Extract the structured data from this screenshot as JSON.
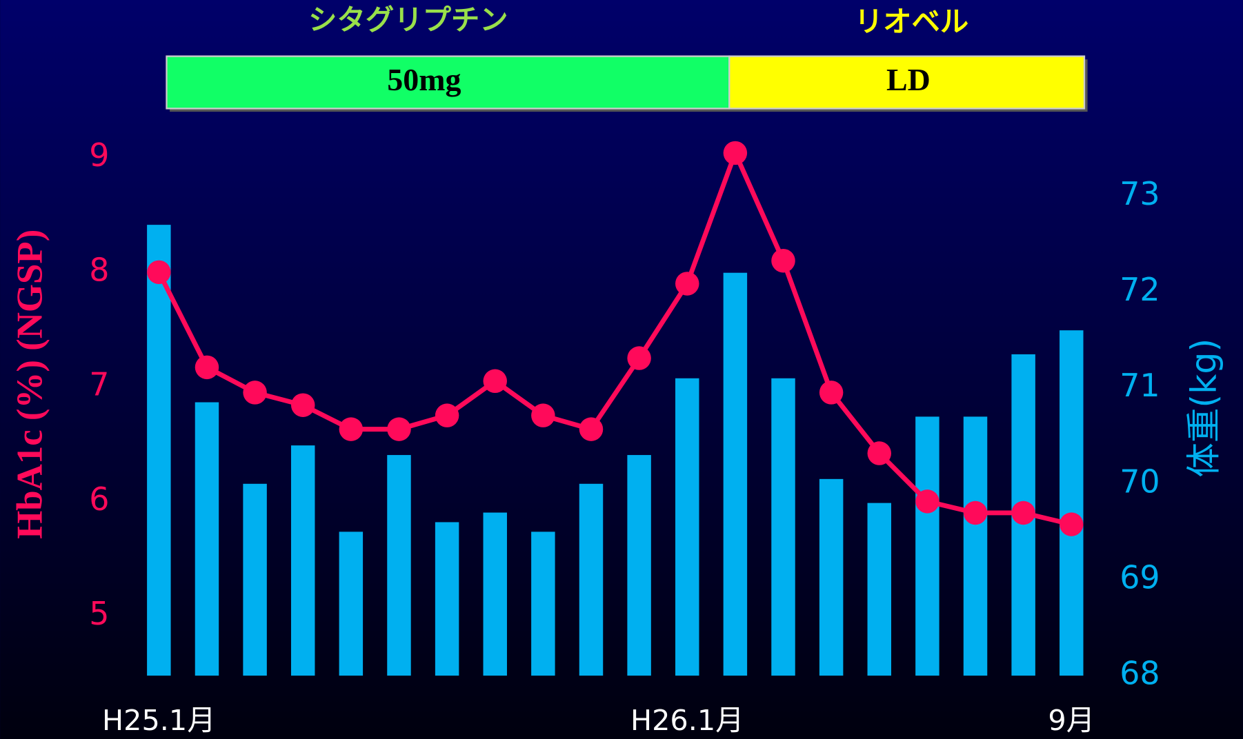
{
  "chart_data": {
    "type": "bar_line",
    "annotations": {
      "drug1": "シタグリプチン",
      "dose1": "50mg",
      "drug2": "リオベル",
      "dose2": "LD"
    },
    "y_label": "HbA1c (%) (NGSP)",
    "y2_label": "体重(kg)",
    "categories": [
      "H25.1月",
      null,
      null,
      null,
      null,
      null,
      null,
      null,
      null,
      null,
      null,
      "H26.1月",
      null,
      null,
      null,
      null,
      null,
      null,
      null,
      "9月"
    ],
    "series": [
      {
        "type": "bar",
        "axis": "y2",
        "color": "#00b0f0",
        "values": [
          72.7,
          70.85,
          70.0,
          70.4,
          69.5,
          70.3,
          69.6,
          69.7,
          69.5,
          70.0,
          70.3,
          71.1,
          72.2,
          71.1,
          70.05,
          69.8,
          70.7,
          70.7,
          71.35,
          71.6
        ]
      },
      {
        "type": "line",
        "axis": "y",
        "color": "#ff0a5a",
        "values": [
          8.0,
          7.17,
          6.95,
          6.84,
          6.63,
          6.63,
          6.75,
          7.05,
          6.75,
          6.63,
          7.25,
          7.9,
          9.04,
          8.1,
          6.95,
          6.42,
          6.0,
          5.9,
          5.9,
          5.8
        ]
      }
    ],
    "ylim": [
      4.48,
      9.2
    ],
    "yticks": [
      5,
      6,
      7,
      8,
      9
    ],
    "y2lim": [
      68,
      73.64
    ],
    "y2ticks": [
      68,
      69,
      70,
      71,
      72,
      73
    ],
    "grid": false
  }
}
